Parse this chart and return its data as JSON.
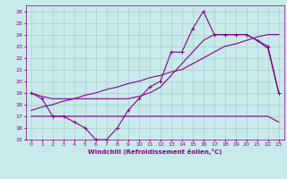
{
  "xlabel": "Windchill (Refroidissement éolien,°C)",
  "background_color": "#c8eaea",
  "grid_color": "#aacccc",
  "line_color": "#880088",
  "xlim": [
    -0.5,
    23.5
  ],
  "ylim": [
    15,
    26.5
  ],
  "xticks": [
    0,
    1,
    2,
    3,
    4,
    5,
    6,
    7,
    8,
    9,
    10,
    11,
    12,
    13,
    14,
    15,
    16,
    17,
    18,
    19,
    20,
    21,
    22,
    23
  ],
  "yticks": [
    15,
    16,
    17,
    18,
    19,
    20,
    21,
    22,
    23,
    24,
    25,
    26
  ],
  "hours": [
    0,
    1,
    2,
    3,
    4,
    5,
    6,
    7,
    8,
    9,
    10,
    11,
    12,
    13,
    14,
    15,
    16,
    17,
    18,
    19,
    20,
    21,
    22,
    23
  ],
  "series_jagged": [
    19.0,
    18.5,
    17.0,
    17.0,
    16.5,
    16.0,
    15.0,
    15.0,
    16.0,
    17.5,
    18.5,
    19.5,
    20.0,
    22.5,
    22.5,
    24.5,
    26.0,
    24.0,
    24.0,
    24.0,
    24.0,
    23.5,
    23.0,
    19.0
  ],
  "series_smooth": [
    19.0,
    18.7,
    18.5,
    18.5,
    18.5,
    18.5,
    18.5,
    18.5,
    18.5,
    18.5,
    18.7,
    19.0,
    19.5,
    20.5,
    21.5,
    22.5,
    23.5,
    24.0,
    24.0,
    24.0,
    24.0,
    23.5,
    22.8,
    19.0
  ],
  "series_linear": [
    17.5,
    17.8,
    18.0,
    18.3,
    18.5,
    18.8,
    19.0,
    19.3,
    19.5,
    19.8,
    20.0,
    20.3,
    20.5,
    20.8,
    21.0,
    21.5,
    22.0,
    22.5,
    23.0,
    23.2,
    23.5,
    23.8,
    24.0,
    24.0
  ],
  "series_flat": [
    17.0,
    17.0,
    17.0,
    17.0,
    17.0,
    17.0,
    17.0,
    17.0,
    17.0,
    17.0,
    17.0,
    17.0,
    17.0,
    17.0,
    17.0,
    17.0,
    17.0,
    17.0,
    17.0,
    17.0,
    17.0,
    17.0,
    17.0,
    16.5
  ]
}
